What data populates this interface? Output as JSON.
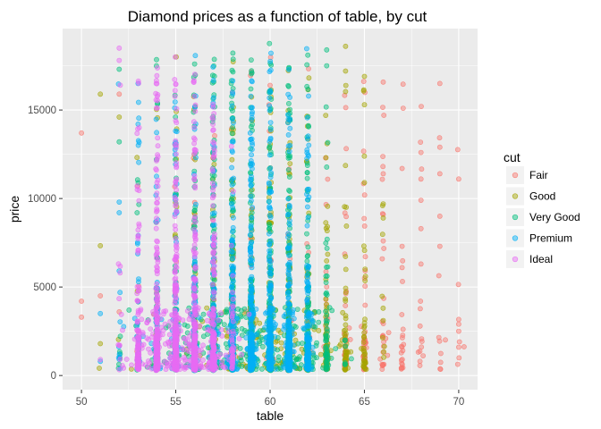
{
  "chart_data": {
    "type": "scatter",
    "title": "Diamond prices as a function of table, by cut",
    "xlabel": "table",
    "ylabel": "price",
    "xlim": [
      49.0,
      71.0
    ],
    "ylim": [
      -800,
      19600
    ],
    "xticks": [
      50,
      55,
      60,
      65,
      70
    ],
    "yticks": [
      0,
      5000,
      10000,
      15000
    ],
    "grid": true,
    "legend": {
      "title": "cut",
      "position": "right"
    },
    "series": [
      {
        "name": "Fair",
        "color": "#F8766D",
        "tables": [
          50,
          51,
          52,
          53,
          54,
          55,
          56,
          57,
          58,
          59,
          60,
          61,
          62,
          63,
          64,
          65,
          66,
          67,
          68,
          69,
          70
        ],
        "spread": 0.3,
        "points": [
          [
            50,
            13700
          ],
          [
            50,
            4200
          ],
          [
            50,
            3300
          ],
          [
            51,
            4500
          ],
          [
            52,
            15900
          ],
          [
            52,
            3600
          ],
          [
            53,
            2500
          ],
          [
            69,
            16500
          ],
          [
            69,
            12900
          ],
          [
            69,
            11400
          ],
          [
            69,
            9000
          ],
          [
            69,
            7300
          ],
          [
            70,
            11100
          ],
          [
            70,
            2900
          ],
          [
            70,
            2500
          ],
          [
            70,
            1600
          ],
          [
            68,
            12600
          ],
          [
            68,
            11100
          ],
          [
            68,
            9900
          ],
          [
            68,
            8300
          ],
          [
            68,
            6300
          ],
          [
            67,
            11700
          ],
          [
            67,
            7300
          ],
          [
            67,
            6100
          ],
          [
            66,
            11400
          ],
          [
            66,
            9100
          ],
          [
            66,
            7600
          ]
        ]
      },
      {
        "name": "Good",
        "color": "#A3A500",
        "tables": [
          51,
          52,
          53,
          54,
          55,
          56,
          57,
          58,
          59,
          60,
          61,
          62,
          63,
          64,
          65,
          66
        ],
        "spread": 0.45,
        "points": [
          [
            51,
            15900
          ],
          [
            51,
            1800
          ],
          [
            52,
            14600
          ],
          [
            64,
            18600
          ],
          [
            64,
            17200
          ],
          [
            65,
            16900
          ],
          [
            65,
            15300
          ],
          [
            65,
            10900
          ],
          [
            66,
            9700
          ],
          [
            66,
            8900
          ]
        ]
      },
      {
        "name": "Very Good",
        "color": "#00BF7D",
        "tables": [
          52,
          53,
          54,
          55,
          56,
          57,
          58,
          59,
          60,
          61,
          62,
          63,
          64
        ],
        "spread": 0.5,
        "points": [
          [
            52,
            17300
          ],
          [
            52,
            13200
          ],
          [
            63,
            18400
          ],
          [
            63,
            17500
          ],
          [
            62,
            18100
          ],
          [
            61,
            17400
          ]
        ]
      },
      {
        "name": "Premium",
        "color": "#00B0F6",
        "tables": [
          52,
          53,
          54,
          55,
          56,
          57,
          58,
          59,
          60,
          61,
          62
        ],
        "spread": 0.3,
        "points": [
          [
            51,
            3500
          ],
          [
            51,
            800
          ],
          [
            52,
            9800
          ],
          [
            52,
            9200
          ],
          [
            53,
            16500
          ],
          [
            53,
            14200
          ]
        ]
      },
      {
        "name": "Ideal",
        "color": "#E76BF3",
        "tables": [
          52,
          53,
          54,
          55,
          56,
          57,
          58
        ],
        "spread": 0.9,
        "points": [
          [
            52,
            18500
          ],
          [
            52,
            17800
          ],
          [
            52,
            1700
          ],
          [
            51,
            900
          ],
          [
            53,
            1700
          ]
        ]
      }
    ]
  }
}
